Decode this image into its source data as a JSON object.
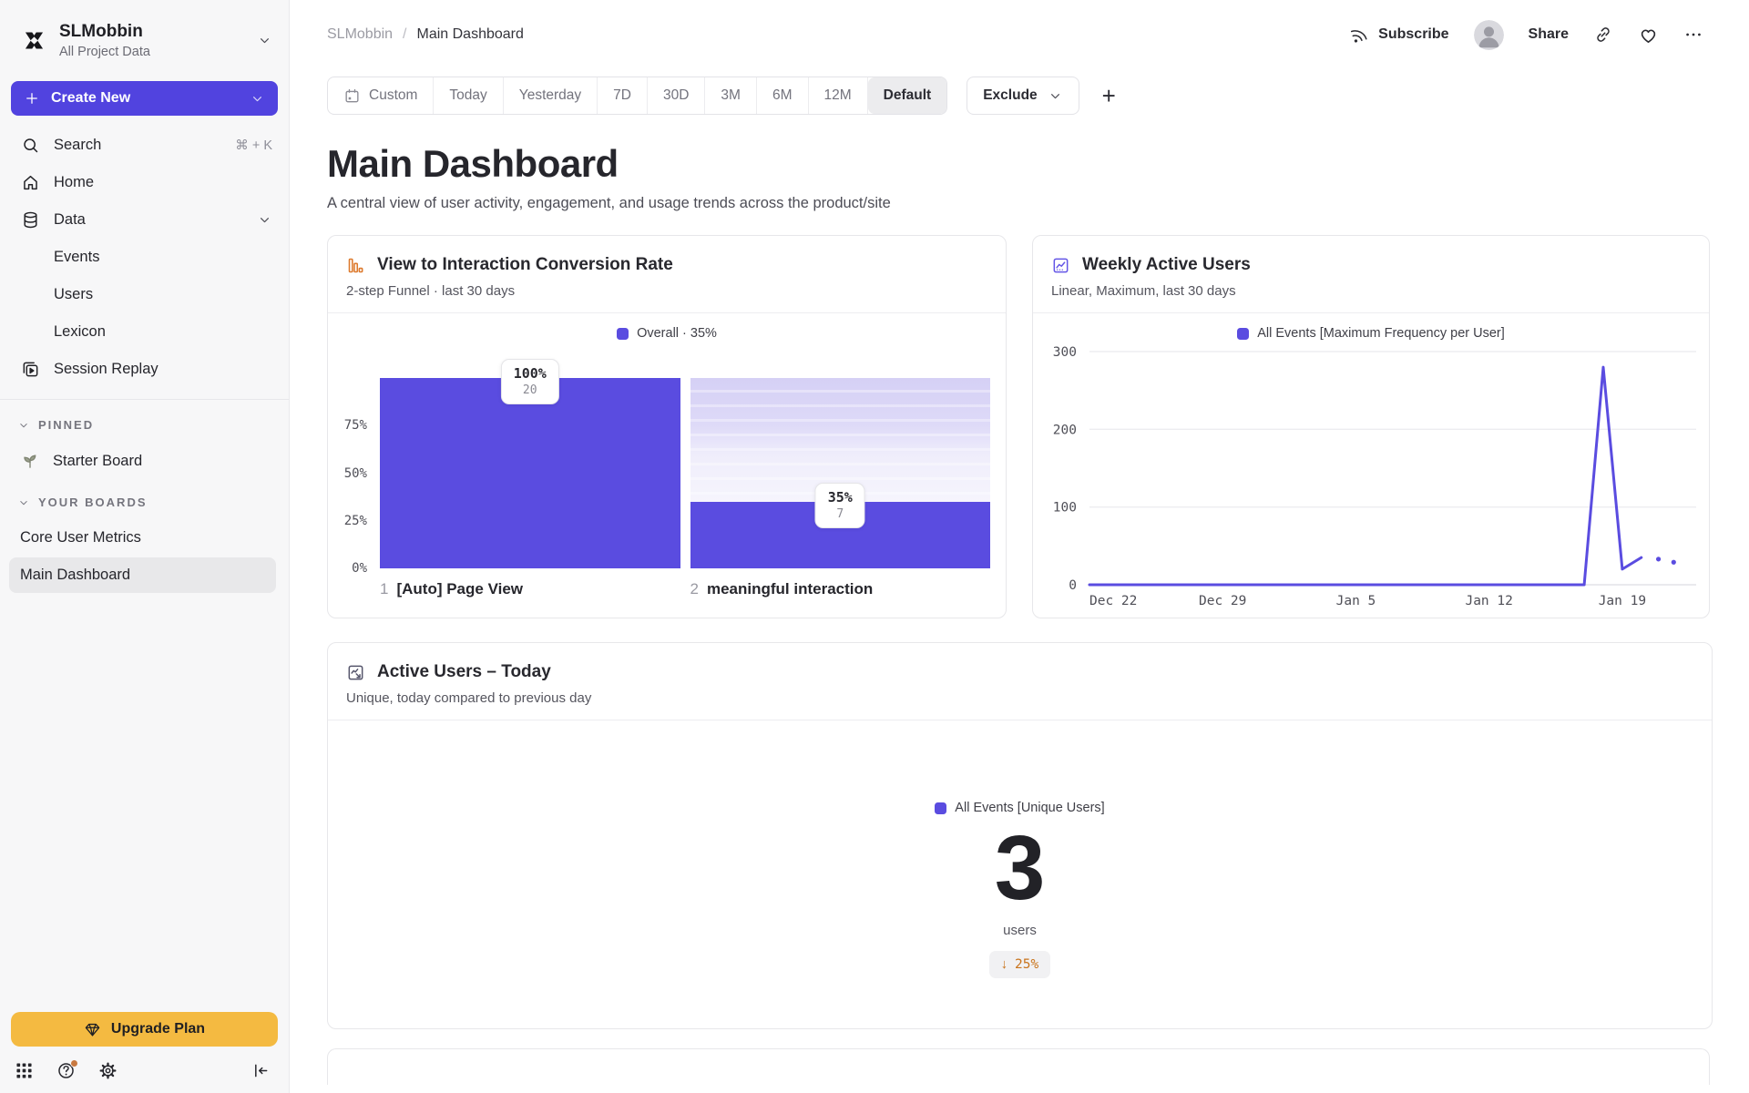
{
  "colors": {
    "accent_purple": "#5a4ce0",
    "button_purple": "#5143df",
    "light_purple_dropoff": "#dedaf8",
    "upgrade_amber": "#f4ba41",
    "funnel_icon_orange": "#dd7a2e",
    "delta_orange": "#c9741c",
    "sidebar_bg": "#f7f7f8",
    "selected_item_bg": "#e8e8ea"
  },
  "sidebar": {
    "workspace": {
      "name": "SLMobbin",
      "subtitle": "All Project Data",
      "logo_icon": "mixpanel-logo"
    },
    "create_new_label": "Create New",
    "nav": [
      {
        "label": "Search",
        "icon": "search",
        "shortcut": "⌘ + K"
      },
      {
        "label": "Home",
        "icon": "home"
      },
      {
        "label": "Data",
        "icon": "database",
        "chevron": true
      },
      {
        "label": "Events",
        "indent": true
      },
      {
        "label": "Users",
        "indent": true
      },
      {
        "label": "Lexicon",
        "indent": true
      },
      {
        "label": "Session Replay",
        "icon": "session-replay"
      }
    ],
    "sections": [
      {
        "header": "PINNED",
        "items": [
          {
            "label": "Starter Board",
            "icon": "seedling"
          }
        ]
      },
      {
        "header": "YOUR BOARDS",
        "items": [
          {
            "label": "Core User Metrics"
          },
          {
            "label": "Main Dashboard",
            "selected": true
          }
        ]
      }
    ],
    "footer": {
      "upgrade_label": "Upgrade Plan",
      "icons": [
        "apps-grid-icon",
        "help-icon",
        "settings-icon",
        "collapse-sidebar-icon"
      ]
    }
  },
  "topbar": {
    "breadcrumb": {
      "parent": "SLMobbin",
      "separator": "/",
      "current": "Main Dashboard"
    },
    "subscribe_label": "Subscribe",
    "share_label": "Share",
    "icons": [
      "rss-icon",
      "avatar",
      "link-icon",
      "heart-icon",
      "more-icon"
    ]
  },
  "filters": {
    "date_ranges": [
      {
        "label": "Custom",
        "icon": "calendar"
      },
      {
        "label": "Today"
      },
      {
        "label": "Yesterday"
      },
      {
        "label": "7D"
      },
      {
        "label": "30D"
      },
      {
        "label": "3M"
      },
      {
        "label": "6M"
      },
      {
        "label": "12M"
      },
      {
        "label": "Default",
        "selected": true
      }
    ],
    "exclude_label": "Exclude",
    "add_label": "+"
  },
  "page": {
    "title": "Main Dashboard",
    "subtitle": "A central view of user activity, engagement, and usage trends across the product/site"
  },
  "chart_data": [
    {
      "type": "bar",
      "subtype": "funnel",
      "title": "View to Interaction Conversion Rate",
      "subtitle": "2-step Funnel · last 30 days",
      "icon": "bar-chart-icon",
      "legend": "Overall · 35%",
      "overall_conversion_pct": 35,
      "y_tick_labels": [
        "75%",
        "50%",
        "25%",
        "0%"
      ],
      "y_tick_values": [
        75,
        50,
        25,
        0
      ],
      "ylim": [
        0,
        100
      ],
      "steps": [
        {
          "index": 1,
          "label": "[Auto] Page View",
          "conversion_pct": 100,
          "count": 20
        },
        {
          "index": 2,
          "label": "meaningful interaction",
          "conversion_pct": 35,
          "count": 7
        }
      ]
    },
    {
      "type": "line",
      "title": "Weekly Active Users",
      "subtitle": "Linear, Maximum, last 30 days",
      "icon": "line-chart-icon",
      "legend": "All Events [Maximum Frequency per User]",
      "y_ticks": [
        300,
        200,
        100,
        0
      ],
      "ylim": [
        0,
        300
      ],
      "x_tick_labels": [
        "Dec 22",
        "Dec 29",
        "Jan 5",
        "Jan 12",
        "Jan 19"
      ],
      "x_tick_indices": [
        0,
        7,
        14,
        21,
        28
      ],
      "dates": [
        "Dec 22",
        "Dec 23",
        "Dec 24",
        "Dec 25",
        "Dec 26",
        "Dec 27",
        "Dec 28",
        "Dec 29",
        "Dec 30",
        "Dec 31",
        "Jan 1",
        "Jan 2",
        "Jan 3",
        "Jan 4",
        "Jan 5",
        "Jan 6",
        "Jan 7",
        "Jan 8",
        "Jan 9",
        "Jan 10",
        "Jan 11",
        "Jan 12",
        "Jan 13",
        "Jan 14",
        "Jan 15",
        "Jan 16",
        "Jan 17",
        "Jan 18",
        "Jan 19",
        "Jan 20"
      ],
      "values": [
        0,
        0,
        0,
        0,
        0,
        0,
        0,
        0,
        0,
        0,
        0,
        0,
        0,
        0,
        0,
        0,
        0,
        0,
        0,
        0,
        0,
        0,
        0,
        0,
        0,
        0,
        0,
        280,
        20,
        35
      ],
      "trailing_incomplete_dots": [
        33,
        29
      ],
      "grid": true,
      "legend_position": "top"
    },
    {
      "type": "metric",
      "title": "Active Users – Today",
      "subtitle": "Unique, today compared to previous day",
      "icon": "metric-chart-icon",
      "legend": "All Events [Unique Users]",
      "value": 3,
      "unit": "users",
      "delta_arrow": "↓",
      "delta_label": "25%",
      "delta_direction": "down"
    }
  ]
}
